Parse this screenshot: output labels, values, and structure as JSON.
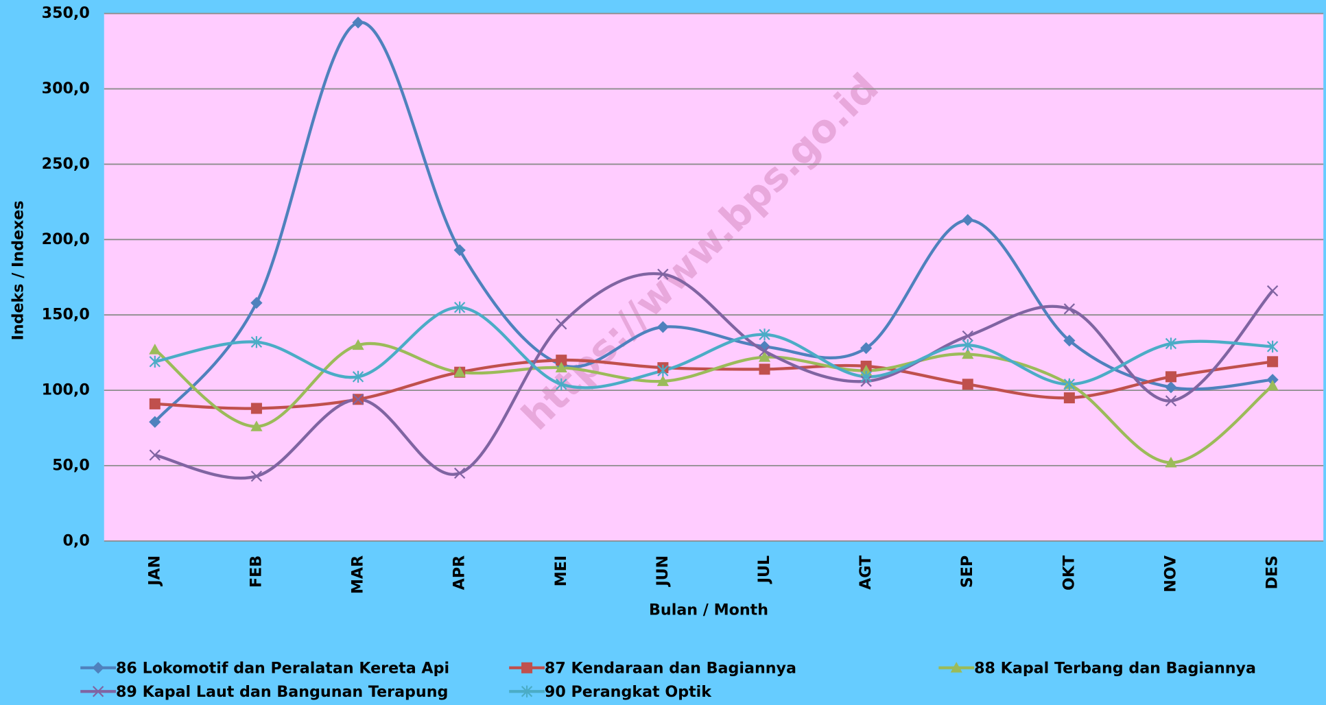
{
  "chart_data": {
    "type": "line",
    "smooth": true,
    "y_label": "Indeks / Indexes",
    "x_label": "Bulan / Month",
    "annotation": "https://www.bps.go.id",
    "categories": [
      "JAN",
      "FEB",
      "MAR",
      "APR",
      "MEI",
      "JUN",
      "JUL",
      "AGT",
      "SEP",
      "OKT",
      "NOV",
      "DES"
    ],
    "ylim": [
      0,
      350
    ],
    "yticks": [
      {
        "value": 0,
        "label": "0,0"
      },
      {
        "value": 50,
        "label": "50,0"
      },
      {
        "value": 100,
        "label": "100,0"
      },
      {
        "value": 150,
        "label": "150,0"
      },
      {
        "value": 200,
        "label": "200,0"
      },
      {
        "value": 250,
        "label": "250,0"
      },
      {
        "value": 300,
        "label": "300,0"
      },
      {
        "value": 350,
        "label": "350,0"
      }
    ],
    "grid": true,
    "legend": "bottom",
    "series": [
      {
        "name": "86 Lokomotif dan Peralatan Kereta Api",
        "color": "#4f81bd",
        "marker": "diamond",
        "values": [
          79,
          158,
          344,
          193,
          117,
          142,
          129,
          128,
          213,
          133,
          102,
          107
        ]
      },
      {
        "name": "87 Kendaraan dan Bagiannya",
        "color": "#c0504d",
        "marker": "square",
        "values": [
          91,
          88,
          94,
          112,
          120,
          115,
          114,
          116,
          104,
          95,
          109,
          119
        ]
      },
      {
        "name": "88 Kapal Terbang dan Bagiannya",
        "color": "#9bbb59",
        "marker": "triangle",
        "values": [
          127,
          76,
          130,
          112,
          115,
          106,
          122,
          113,
          124,
          104,
          52,
          103
        ]
      },
      {
        "name": "89 Kapal Laut dan Bangunan Terapung",
        "color": "#8064a2",
        "marker": "x",
        "values": [
          57,
          43,
          94,
          45,
          144,
          177,
          126,
          106,
          136,
          154,
          93,
          166
        ]
      },
      {
        "name": "90 Perangkat Optik",
        "color": "#4bacc6",
        "marker": "star",
        "values": [
          119,
          132,
          109,
          155,
          104,
          113,
          137,
          109,
          130,
          104,
          131,
          129
        ]
      }
    ]
  }
}
